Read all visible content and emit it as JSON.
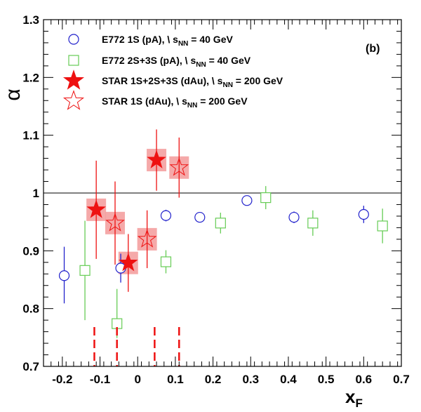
{
  "chart_data": {
    "type": "scatter",
    "panel_label": "(b)",
    "xlabel_main": "x",
    "xlabel_sub": "F",
    "ylabel": "α",
    "xlim": [
      -0.25,
      0.7
    ],
    "ylim": [
      0.7,
      1.3
    ],
    "xticks": [
      -0.2,
      -0.1,
      0.0,
      0.1,
      0.2,
      0.3,
      0.4,
      0.5,
      0.6,
      0.7
    ],
    "xtick_labels": [
      "-0.2",
      "-0.1",
      "0",
      "0.1",
      "0.2",
      "0.3",
      "0.4",
      "0.5",
      "0.6",
      "0.7"
    ],
    "yticks": [
      0.7,
      0.8,
      0.9,
      1.0,
      1.1,
      1.2,
      1.3
    ],
    "ytick_labels": [
      "0.7",
      "0.8",
      "0.9",
      "1",
      "1.1",
      "1.2",
      "1.3"
    ],
    "reference_line_y": 1.0,
    "dashed_markers_x": [
      -0.115,
      -0.055,
      0.045,
      0.11
    ],
    "colors": {
      "e772_1s": "#2222cc",
      "e772_2s3s": "#66cc55",
      "star": "#ee1111",
      "star_syst_box": "#f4a0a0",
      "dashed": "#ee1111"
    },
    "legend": [
      {
        "marker": "open-circle",
        "prefix": "E772 1S (pA),  \\ s",
        "sub": "NN",
        "suffix": " = 40 GeV"
      },
      {
        "marker": "open-square",
        "prefix": "E772 2S+3S (pA),  \\ s",
        "sub": "NN",
        "suffix": " = 40 GeV"
      },
      {
        "marker": "filled-star",
        "prefix": "STAR 1S+2S+3S (dAu),  \\ s",
        "sub": "NN",
        "suffix": " = 200 GeV"
      },
      {
        "marker": "open-star",
        "prefix": "STAR 1S (dAu),  \\ s",
        "sub": "NN",
        "suffix": " = 200 GeV"
      }
    ],
    "series": [
      {
        "key": "e772_1s",
        "marker": "open-circle",
        "points": [
          {
            "x": -0.195,
            "y": 0.857,
            "err_lo": 0.048,
            "err_hi": 0.05
          },
          {
            "x": -0.045,
            "y": 0.87,
            "err_lo": 0.025,
            "err_hi": 0.025
          },
          {
            "x": 0.075,
            "y": 0.961,
            "err_lo": 0.01,
            "err_hi": 0.01
          },
          {
            "x": 0.165,
            "y": 0.958,
            "err_lo": 0.004,
            "err_hi": 0.004
          },
          {
            "x": 0.29,
            "y": 0.987,
            "err_lo": 0.004,
            "err_hi": 0.004
          },
          {
            "x": 0.415,
            "y": 0.958,
            "err_lo": 0.01,
            "err_hi": 0.01
          },
          {
            "x": 0.6,
            "y": 0.963,
            "err_lo": 0.015,
            "err_hi": 0.015
          }
        ]
      },
      {
        "key": "e772_2s3s",
        "marker": "open-square",
        "points": [
          {
            "x": -0.14,
            "y": 0.866,
            "err_lo": 0.086,
            "err_hi": 0.086
          },
          {
            "x": -0.055,
            "y": 0.774,
            "err_lo": 0.025,
            "err_hi": 0.06
          },
          {
            "x": 0.075,
            "y": 0.881,
            "err_lo": 0.02,
            "err_hi": 0.02
          },
          {
            "x": 0.22,
            "y": 0.948,
            "err_lo": 0.018,
            "err_hi": 0.018
          },
          {
            "x": 0.34,
            "y": 0.992,
            "err_lo": 0.02,
            "err_hi": 0.02
          },
          {
            "x": 0.465,
            "y": 0.948,
            "err_lo": 0.022,
            "err_hi": 0.022
          },
          {
            "x": 0.65,
            "y": 0.943,
            "err_lo": 0.03,
            "err_hi": 0.03
          }
        ]
      },
      {
        "key": "star_1s2s3s",
        "marker": "filled-star",
        "points": [
          {
            "x": -0.11,
            "y": 0.971,
            "err_lo": 0.085,
            "err_hi": 0.085
          },
          {
            "x": -0.025,
            "y": 0.879,
            "err_lo": 0.05,
            "err_hi": 0.05
          },
          {
            "x": 0.05,
            "y": 1.057,
            "err_lo": 0.053,
            "err_hi": 0.053
          }
        ]
      },
      {
        "key": "star_1s",
        "marker": "open-star",
        "points": [
          {
            "x": -0.06,
            "y": 0.948,
            "err_lo": 0.072,
            "err_hi": 0.072
          },
          {
            "x": 0.025,
            "y": 0.92,
            "err_lo": 0.05,
            "err_hi": 0.05
          },
          {
            "x": 0.11,
            "y": 1.044,
            "err_lo": 0.052,
            "err_hi": 0.052
          }
        ]
      }
    ]
  }
}
